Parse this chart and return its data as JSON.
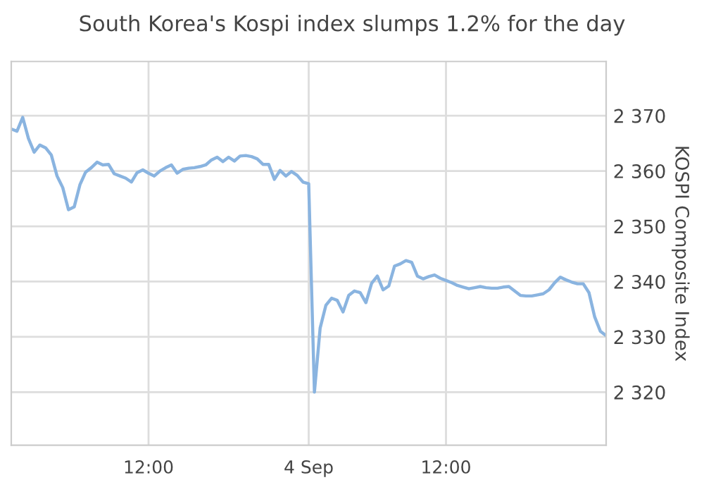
{
  "chart_data": {
    "type": "line",
    "title": "South Korea's Kospi index slumps 1.2% for the day",
    "ylabel": "KOSPI Composite Index",
    "categories": [
      null,
      null,
      null,
      null,
      null,
      null,
      null,
      null,
      null,
      null,
      null,
      null,
      null,
      null,
      null,
      null,
      null,
      null,
      null,
      null,
      null,
      null,
      null,
      null,
      "12:00",
      null,
      null,
      null,
      null,
      null,
      null,
      null,
      null,
      null,
      null,
      null,
      null,
      null,
      null,
      null,
      null,
      null,
      null,
      null,
      null,
      null,
      null,
      null,
      null,
      null,
      null,
      null,
      "4 Sep",
      null,
      null,
      null,
      null,
      null,
      null,
      null,
      null,
      null,
      null,
      null,
      null,
      null,
      null,
      null,
      null,
      null,
      null,
      null,
      null,
      null,
      null,
      null,
      "12:00",
      null,
      null,
      null,
      null,
      null,
      null,
      null,
      null,
      null,
      null,
      null,
      null,
      null,
      null,
      null,
      null,
      null,
      null,
      null,
      null,
      null,
      null,
      null,
      null,
      null,
      null,
      null,
      null
    ],
    "series": [
      {
        "color": "#8ab4e0",
        "values": [
          2367.6,
          2367.2,
          2369.7,
          2365.9,
          2363.4,
          2364.7,
          2364.2,
          2362.9,
          2359.1,
          2357.0,
          2353.0,
          2353.5,
          2357.5,
          2359.8,
          2360.6,
          2361.6,
          2361.1,
          2361.2,
          2359.5,
          2359.1,
          2358.7,
          2358.0,
          2359.7,
          2360.2,
          2359.6,
          2359.1,
          2360.0,
          2360.6,
          2361.1,
          2359.6,
          2360.3,
          2360.5,
          2360.6,
          2360.8,
          2361.1,
          2362.0,
          2362.5,
          2361.7,
          2362.5,
          2361.8,
          2362.7,
          2362.8,
          2362.6,
          2362.2,
          2361.2,
          2361.2,
          2358.5,
          2360.1,
          2359.1,
          2359.9,
          2359.2,
          2358.0,
          2357.7,
          2320.0,
          2331.6,
          2335.7,
          2337.0,
          2336.6,
          2334.5,
          2337.5,
          2338.3,
          2338.0,
          2336.2,
          2339.7,
          2341.0,
          2338.5,
          2339.2,
          2342.8,
          2343.2,
          2343.8,
          2343.5,
          2341.0,
          2340.5,
          2340.9,
          2341.2,
          2340.6,
          2340.2,
          2339.8,
          2339.3,
          2339.0,
          2338.7,
          2338.9,
          2339.1,
          2338.9,
          2338.8,
          2338.8,
          2339.0,
          2339.1,
          2338.3,
          2337.5,
          2337.4,
          2337.4,
          2337.6,
          2337.8,
          2338.5,
          2339.8,
          2340.8,
          2340.3,
          2339.9,
          2339.6,
          2339.6,
          2338.0,
          2333.6,
          2331.0,
          2330.2
        ]
      }
    ],
    "ylim": [
      2310.4,
      2379.8
    ],
    "yticks": [
      {
        "value": 2320,
        "label": "2 320"
      },
      {
        "value": 2330,
        "label": "2 330"
      },
      {
        "value": 2340,
        "label": "2 340"
      },
      {
        "value": 2350,
        "label": "2 350"
      },
      {
        "value": 2360,
        "label": "2 360"
      },
      {
        "value": 2370,
        "label": "2 370"
      }
    ],
    "grid": true,
    "marker": "none",
    "line_style": "solid"
  }
}
